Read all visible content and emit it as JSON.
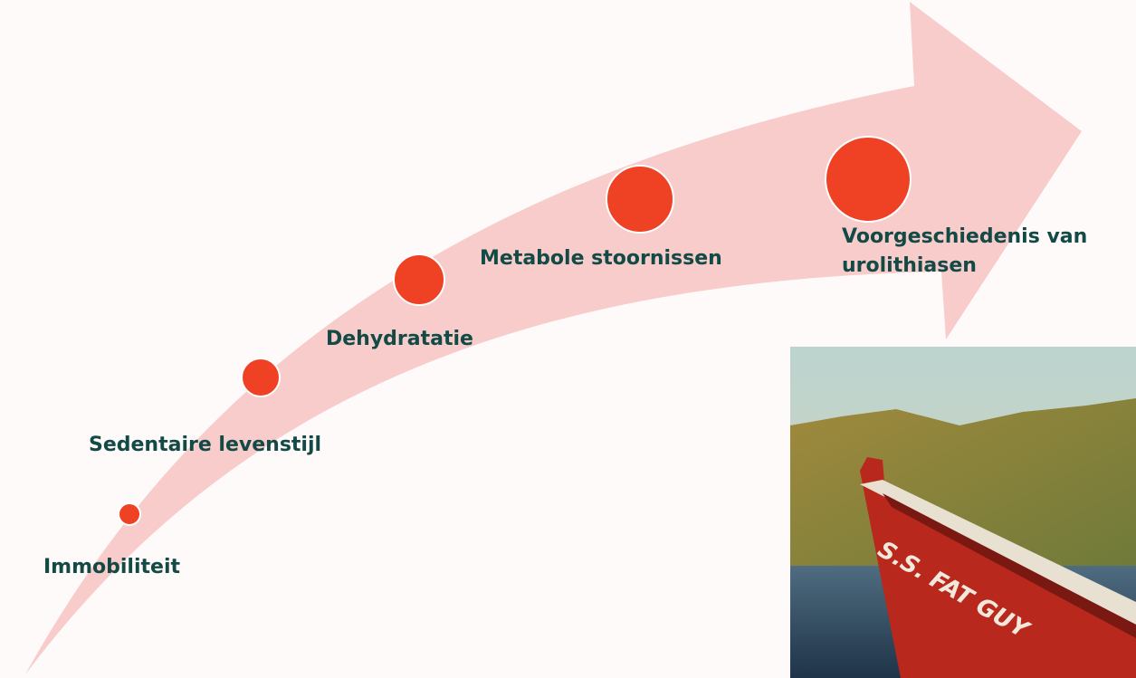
{
  "steps": [
    {
      "lines": [
        "Immobiliteit"
      ]
    },
    {
      "lines": [
        "Sedentaire levenstijl"
      ]
    },
    {
      "lines": [
        "Dehydratatie"
      ]
    },
    {
      "lines": [
        "Metabole stoornissen"
      ]
    },
    {
      "lines": [
        "Voorgeschiedenis van",
        "urolithiasen"
      ]
    }
  ],
  "photo": {
    "boat_text": "S.S. FAT GUY"
  }
}
